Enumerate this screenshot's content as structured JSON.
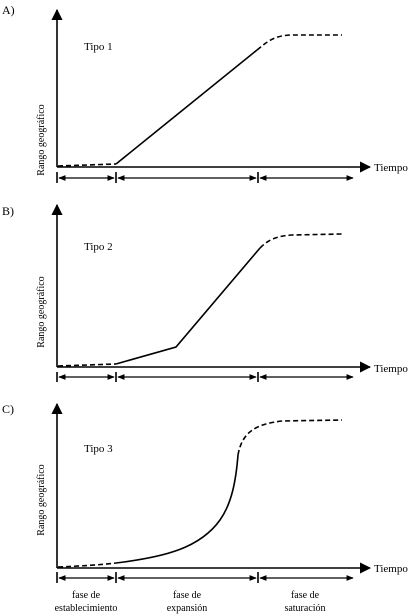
{
  "figure": {
    "y_axis_label": "Rango geográfico",
    "x_axis_label": "Tiempo",
    "panels": [
      {
        "letter": "A)",
        "type_label": "Tipo 1"
      },
      {
        "letter": "B)",
        "type_label": "Tipo 2"
      },
      {
        "letter": "C)",
        "type_label": "Tipo 3"
      }
    ],
    "phases": [
      {
        "line1": "fase de",
        "line2": "establecimiento"
      },
      {
        "line1": "fase de",
        "line2": "expansión"
      },
      {
        "line1": "fase de",
        "line2": "saturación"
      }
    ]
  }
}
